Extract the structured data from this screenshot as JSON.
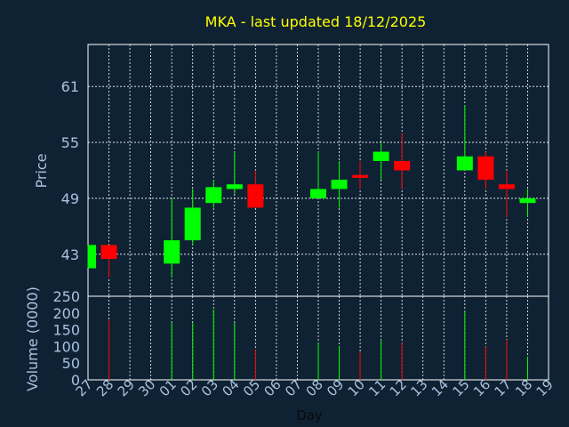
{
  "chart_data": {
    "type": "candlestick",
    "title": "MKA - last updated 18/12/2025",
    "xlabel": "Day",
    "price_panel": {
      "ylabel": "Price",
      "ylim": [
        38.5,
        65.5
      ],
      "yticks": [
        43,
        49,
        55,
        61
      ]
    },
    "volume_panel": {
      "ylabel": "Volume (0000)",
      "ylim": [
        0,
        250
      ],
      "yticks": [
        0,
        50,
        100,
        150,
        200,
        250
      ]
    },
    "x_ticks": [
      "27",
      "28",
      "29",
      "30",
      "01",
      "02",
      "03",
      "04",
      "05",
      "06",
      "07",
      "08",
      "09",
      "10",
      "11",
      "12",
      "13",
      "14",
      "15",
      "16",
      "17",
      "18",
      "19"
    ],
    "candles": [
      {
        "day": "27",
        "open": 41.5,
        "high": 44.0,
        "low": 41.5,
        "close": 44.0
      },
      {
        "day": "28",
        "open": 44.0,
        "high": 44.0,
        "low": 40.5,
        "close": 42.5
      },
      {
        "day": "01",
        "open": 42.0,
        "high": 49.0,
        "low": 40.5,
        "close": 44.5
      },
      {
        "day": "02",
        "open": 44.5,
        "high": 50.0,
        "low": 44.0,
        "close": 48.0
      },
      {
        "day": "03",
        "open": 48.5,
        "high": 51.0,
        "low": 48.0,
        "close": 50.2
      },
      {
        "day": "04",
        "open": 50.0,
        "high": 54.0,
        "low": 49.5,
        "close": 50.5
      },
      {
        "day": "05",
        "open": 50.5,
        "high": 52.0,
        "low": 48.0,
        "close": 48.0
      },
      {
        "day": "08",
        "open": 49.0,
        "high": 54.0,
        "low": 49.0,
        "close": 50.0
      },
      {
        "day": "09",
        "open": 50.0,
        "high": 53.0,
        "low": 48.0,
        "close": 51.0
      },
      {
        "day": "10",
        "open": 51.5,
        "high": 53.0,
        "low": 50.0,
        "close": 51.2
      },
      {
        "day": "11",
        "open": 53.0,
        "high": 55.0,
        "low": 51.0,
        "close": 54.0
      },
      {
        "day": "12",
        "open": 53.0,
        "high": 56.0,
        "low": 50.0,
        "close": 52.0
      },
      {
        "day": "15",
        "open": 52.0,
        "high": 59.0,
        "low": 52.0,
        "close": 53.5
      },
      {
        "day": "16",
        "open": 53.5,
        "high": 54.0,
        "low": 50.0,
        "close": 51.0
      },
      {
        "day": "17",
        "open": 50.5,
        "high": 52.0,
        "low": 47.0,
        "close": 50.0
      },
      {
        "day": "18",
        "open": 48.5,
        "high": 50.0,
        "low": 47.0,
        "close": 49.0
      }
    ],
    "volume": [
      {
        "day": "28",
        "value": 180
      },
      {
        "day": "01",
        "value": 170
      },
      {
        "day": "02",
        "value": 170
      },
      {
        "day": "03",
        "value": 210
      },
      {
        "day": "04",
        "value": 170
      },
      {
        "day": "05",
        "value": 90
      },
      {
        "day": "08",
        "value": 110
      },
      {
        "day": "09",
        "value": 100
      },
      {
        "day": "10",
        "value": 85
      },
      {
        "day": "11",
        "value": 120
      },
      {
        "day": "12",
        "value": 110
      },
      {
        "day": "15",
        "value": 205
      },
      {
        "day": "16",
        "value": 100
      },
      {
        "day": "17",
        "value": 120
      },
      {
        "day": "18",
        "value": 70
      }
    ],
    "colors": {
      "background": "#0f2233",
      "up": "#00ff00",
      "down": "#ff0000",
      "grid": "#ffffff",
      "axis_text": "#a9c2df",
      "title": "#ffff00"
    },
    "grid": true
  }
}
